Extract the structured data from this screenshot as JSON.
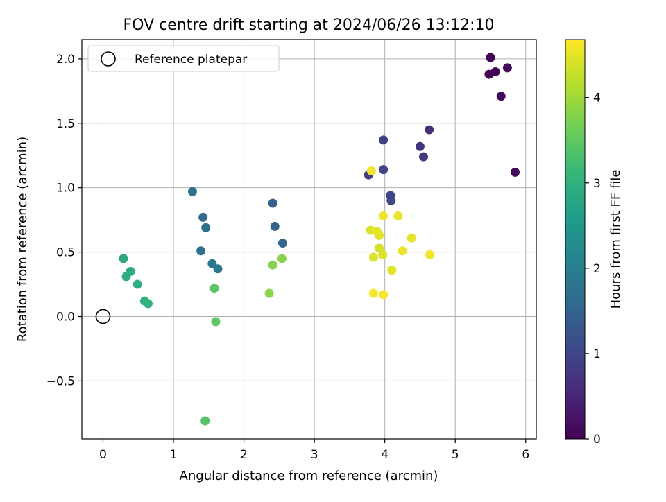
{
  "chart_data": {
    "type": "scatter",
    "title": "FOV centre drift starting at 2024/06/26 13:12:10",
    "xlabel": "Angular distance from reference (arcmin)",
    "ylabel": "Rotation from reference (arcmin)",
    "xlim": [
      -0.3,
      6.15
    ],
    "ylim": [
      -0.95,
      2.15
    ],
    "xticks": [
      0,
      1,
      2,
      3,
      4,
      5,
      6
    ],
    "xtick_labels": [
      "0",
      "1",
      "2",
      "3",
      "4",
      "5",
      "6"
    ],
    "yticks": [
      -0.5,
      0.0,
      0.5,
      1.0,
      1.5,
      2.0
    ],
    "ytick_labels": [
      "−0.5",
      "0.0",
      "0.5",
      "1.0",
      "1.5",
      "2.0"
    ],
    "grid": true,
    "legend": {
      "placement": "top-left",
      "entries": [
        "Reference platepar"
      ]
    },
    "reference_point": {
      "x": 0,
      "y": 0,
      "label": "Reference platepar"
    },
    "colorbar": {
      "label": "Hours from first FF file",
      "colormap": "viridis",
      "range": [
        0,
        4.68
      ],
      "ticks": [
        0,
        1,
        2,
        3,
        4
      ],
      "tick_labels": [
        "0",
        "1",
        "2",
        "3",
        "4"
      ],
      "colors": [
        "#440154",
        "#482878",
        "#3e4989",
        "#31688e",
        "#26828e",
        "#1f9e89",
        "#35b779",
        "#6ece58",
        "#b5de2b",
        "#fde725"
      ]
    },
    "points": [
      {
        "x": 5.5,
        "y": 2.01,
        "c": 0.0
      },
      {
        "x": 5.48,
        "y": 1.88,
        "c": 0.03
      },
      {
        "x": 5.57,
        "y": 1.9,
        "c": 0.05
      },
      {
        "x": 5.74,
        "y": 1.93,
        "c": 0.08
      },
      {
        "x": 5.65,
        "y": 1.71,
        "c": 0.1
      },
      {
        "x": 5.85,
        "y": 1.12,
        "c": 0.12
      },
      {
        "x": 4.63,
        "y": 1.45,
        "c": 0.65
      },
      {
        "x": 4.5,
        "y": 1.32,
        "c": 0.7
      },
      {
        "x": 4.55,
        "y": 1.24,
        "c": 0.75
      },
      {
        "x": 3.98,
        "y": 1.37,
        "c": 0.9
      },
      {
        "x": 3.77,
        "y": 1.1,
        "c": 0.92
      },
      {
        "x": 3.98,
        "y": 1.14,
        "c": 0.95
      },
      {
        "x": 4.08,
        "y": 0.94,
        "c": 1.0
      },
      {
        "x": 4.09,
        "y": 0.9,
        "c": 1.02
      },
      {
        "x": 2.41,
        "y": 0.88,
        "c": 1.45
      },
      {
        "x": 2.44,
        "y": 0.7,
        "c": 1.5
      },
      {
        "x": 2.55,
        "y": 0.57,
        "c": 1.55
      },
      {
        "x": 1.42,
        "y": 0.77,
        "c": 1.65
      },
      {
        "x": 1.46,
        "y": 0.69,
        "c": 1.7
      },
      {
        "x": 1.27,
        "y": 0.97,
        "c": 1.75
      },
      {
        "x": 1.39,
        "y": 0.51,
        "c": 1.8
      },
      {
        "x": 1.55,
        "y": 0.41,
        "c": 1.85
      },
      {
        "x": 1.63,
        "y": 0.37,
        "c": 1.9
      },
      {
        "x": 0.29,
        "y": 0.45,
        "c": 2.85
      },
      {
        "x": 0.39,
        "y": 0.35,
        "c": 2.9
      },
      {
        "x": 0.33,
        "y": 0.31,
        "c": 2.93
      },
      {
        "x": 0.49,
        "y": 0.25,
        "c": 2.97
      },
      {
        "x": 0.59,
        "y": 0.12,
        "c": 3.0
      },
      {
        "x": 0.64,
        "y": 0.1,
        "c": 3.02
      },
      {
        "x": 1.58,
        "y": 0.22,
        "c": 3.45
      },
      {
        "x": 1.6,
        "y": -0.04,
        "c": 3.5
      },
      {
        "x": 1.45,
        "y": -0.81,
        "c": 3.4
      },
      {
        "x": 2.36,
        "y": 0.18,
        "c": 3.85
      },
      {
        "x": 2.41,
        "y": 0.4,
        "c": 3.8
      },
      {
        "x": 2.54,
        "y": 0.45,
        "c": 3.82
      },
      {
        "x": 3.81,
        "y": 1.13,
        "c": 4.6
      },
      {
        "x": 3.98,
        "y": 0.78,
        "c": 4.58
      },
      {
        "x": 4.19,
        "y": 0.78,
        "c": 4.55
      },
      {
        "x": 3.8,
        "y": 0.67,
        "c": 4.45
      },
      {
        "x": 3.89,
        "y": 0.66,
        "c": 4.5
      },
      {
        "x": 3.92,
        "y": 0.63,
        "c": 4.48
      },
      {
        "x": 4.38,
        "y": 0.61,
        "c": 4.52
      },
      {
        "x": 3.92,
        "y": 0.53,
        "c": 4.4
      },
      {
        "x": 4.25,
        "y": 0.51,
        "c": 4.55
      },
      {
        "x": 3.97,
        "y": 0.48,
        "c": 4.45
      },
      {
        "x": 4.64,
        "y": 0.48,
        "c": 4.6
      },
      {
        "x": 3.84,
        "y": 0.46,
        "c": 4.42
      },
      {
        "x": 4.1,
        "y": 0.36,
        "c": 4.5
      },
      {
        "x": 3.84,
        "y": 0.18,
        "c": 4.62
      },
      {
        "x": 3.98,
        "y": 0.17,
        "c": 4.65
      }
    ]
  }
}
